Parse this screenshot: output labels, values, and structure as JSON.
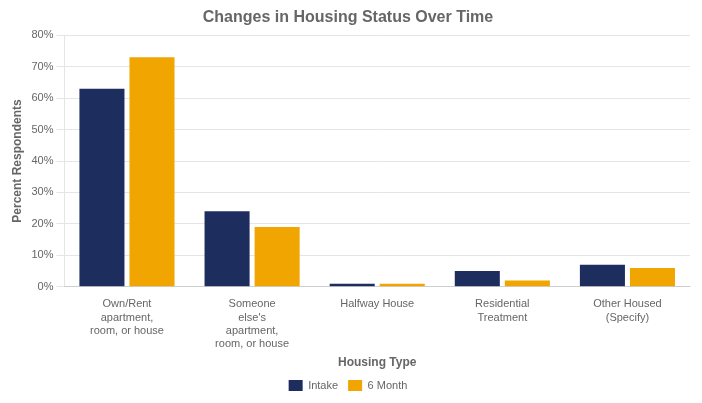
{
  "chart_data": {
    "type": "bar",
    "title": "Changes in Housing Status Over Time",
    "xlabel": "Housing Type",
    "ylabel": "Percent Respondents",
    "categories": [
      "Own/Rent\napartment,\nroom, or house",
      "Someone\nelse's\napartment,\nroom, or house",
      "Halfway House",
      "Residential\nTreatment",
      "Other Housed\n(Specify)"
    ],
    "series": [
      {
        "name": "Intake",
        "color": "#1c2d5e",
        "values": [
          63,
          24,
          1,
          5,
          7
        ]
      },
      {
        "name": "6 Month",
        "color": "#f0a500",
        "values": [
          73,
          19,
          1,
          2,
          6
        ]
      }
    ],
    "ylim": [
      0,
      80
    ],
    "yticks": [
      {
        "value": 0,
        "label": "0%"
      },
      {
        "value": 10,
        "label": "10%"
      },
      {
        "value": 20,
        "label": "20%"
      },
      {
        "value": 30,
        "label": "30%"
      },
      {
        "value": 40,
        "label": "40%"
      },
      {
        "value": 50,
        "label": "50%"
      },
      {
        "value": 60,
        "label": "60%"
      },
      {
        "value": 70,
        "label": "70%"
      },
      {
        "value": 80,
        "label": "80%"
      }
    ],
    "grid": true,
    "legend": "bottom"
  }
}
